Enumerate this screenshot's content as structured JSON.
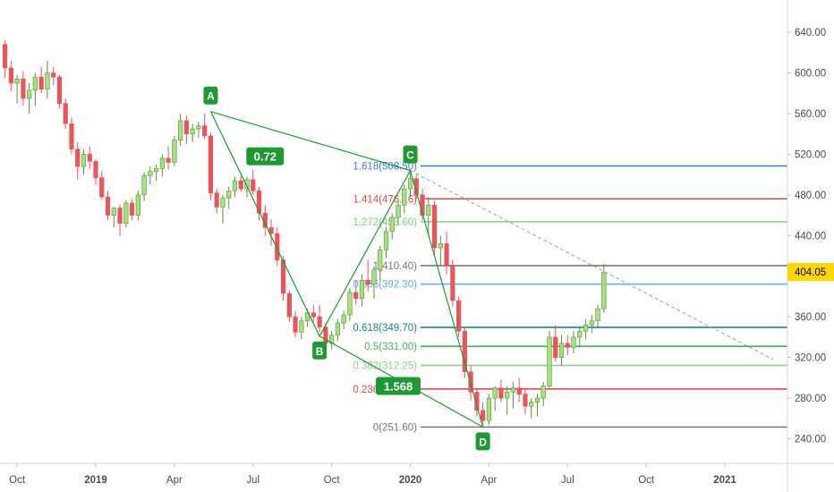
{
  "chart_data": {
    "type": "candlestick",
    "y_axis": {
      "range": [
        225,
        665
      ],
      "ticks": [
        "640.00",
        "600.00",
        "560.00",
        "520.00",
        "480.00",
        "440.00",
        "400.00",
        "360.00",
        "320.00",
        "280.00",
        "240.00"
      ],
      "tick_values": [
        640,
        600,
        560,
        520,
        480,
        440,
        400,
        360,
        320,
        280,
        240
      ],
      "last_price": "404.05",
      "last_price_value": 404.05
    },
    "x_axis": {
      "labels": [
        "Oct",
        "2019",
        "Apr",
        "Jul",
        "Oct",
        "2020",
        "Apr",
        "Jul",
        "Oct",
        "2021"
      ],
      "bold": [
        false,
        true,
        false,
        false,
        false,
        true,
        false,
        false,
        false,
        true
      ],
      "weeks": [
        -13,
        0,
        13,
        26,
        39,
        52,
        65,
        78,
        91,
        104
      ]
    },
    "candles": [
      [
        -15,
        628,
        632,
        595,
        605
      ],
      [
        -14,
        605,
        612,
        582,
        590
      ],
      [
        -13,
        590,
        598,
        570,
        594
      ],
      [
        -12,
        594,
        602,
        568,
        575
      ],
      [
        -11,
        575,
        590,
        560,
        583
      ],
      [
        -10,
        583,
        600,
        568,
        596
      ],
      [
        -9,
        596,
        606,
        580,
        584
      ],
      [
        -8,
        584,
        612,
        575,
        600
      ],
      [
        -7,
        600,
        606,
        588,
        596
      ],
      [
        -6,
        596,
        598,
        565,
        570
      ],
      [
        -5,
        570,
        575,
        545,
        550
      ],
      [
        -4,
        550,
        556,
        520,
        525
      ],
      [
        -3,
        525,
        532,
        495,
        508
      ],
      [
        -2,
        508,
        525,
        500,
        520
      ],
      [
        -1,
        520,
        528,
        505,
        513
      ],
      [
        0,
        513,
        515,
        490,
        497
      ],
      [
        1,
        497,
        504,
        475,
        478
      ],
      [
        2,
        478,
        484,
        455,
        460
      ],
      [
        3,
        460,
        468,
        448,
        467
      ],
      [
        4,
        467,
        470,
        440,
        452
      ],
      [
        5,
        452,
        475,
        448,
        472
      ],
      [
        6,
        472,
        476,
        455,
        460
      ],
      [
        7,
        460,
        484,
        455,
        480
      ],
      [
        8,
        480,
        502,
        474,
        499
      ],
      [
        9,
        499,
        508,
        490,
        503
      ],
      [
        10,
        503,
        510,
        494,
        506
      ],
      [
        11,
        506,
        520,
        498,
        516
      ],
      [
        12,
        516,
        528,
        505,
        512
      ],
      [
        13,
        512,
        538,
        508,
        534
      ],
      [
        14,
        534,
        560,
        528,
        553
      ],
      [
        15,
        553,
        558,
        530,
        540
      ],
      [
        16,
        540,
        550,
        532,
        545
      ],
      [
        17,
        545,
        552,
        536,
        548
      ],
      [
        18,
        548,
        560,
        535,
        538
      ],
      [
        19,
        538,
        542,
        475,
        482
      ],
      [
        20,
        482,
        486,
        462,
        468
      ],
      [
        21,
        468,
        480,
        452,
        477
      ],
      [
        22,
        477,
        488,
        466,
        484
      ],
      [
        23,
        484,
        498,
        478,
        494
      ],
      [
        24,
        494,
        499,
        483,
        486
      ],
      [
        25,
        486,
        498,
        478,
        495
      ],
      [
        26,
        495,
        505,
        480,
        484
      ],
      [
        27,
        484,
        488,
        455,
        462
      ],
      [
        28,
        462,
        470,
        440,
        448
      ],
      [
        29,
        448,
        456,
        430,
        442
      ],
      [
        30,
        442,
        448,
        410,
        416
      ],
      [
        31,
        416,
        420,
        376,
        383
      ],
      [
        32,
        383,
        386,
        355,
        360
      ],
      [
        33,
        360,
        366,
        340,
        345
      ],
      [
        34,
        345,
        360,
        338,
        356
      ],
      [
        35,
        356,
        368,
        350,
        364
      ],
      [
        36,
        364,
        372,
        355,
        360
      ],
      [
        37,
        360,
        372,
        345,
        350
      ],
      [
        38,
        350,
        354,
        330,
        334
      ],
      [
        39,
        334,
        346,
        328,
        342
      ],
      [
        40,
        342,
        358,
        336,
        354
      ],
      [
        41,
        354,
        366,
        348,
        362
      ],
      [
        42,
        362,
        388,
        356,
        384
      ],
      [
        43,
        384,
        396,
        372,
        378
      ],
      [
        44,
        378,
        402,
        370,
        396
      ],
      [
        45,
        396,
        416,
        385,
        392
      ],
      [
        46,
        392,
        410,
        378,
        406
      ],
      [
        47,
        406,
        430,
        396,
        426
      ],
      [
        48,
        426,
        448,
        418,
        444
      ],
      [
        49,
        444,
        462,
        436,
        458
      ],
      [
        50,
        458,
        474,
        450,
        470
      ],
      [
        51,
        470,
        490,
        462,
        486
      ],
      [
        52,
        486,
        502,
        478,
        496
      ],
      [
        53,
        496,
        500,
        476,
        480
      ],
      [
        54,
        480,
        486,
        455,
        460
      ],
      [
        55,
        460,
        478,
        440,
        470
      ],
      [
        56,
        470,
        474,
        420,
        428
      ],
      [
        57,
        428,
        440,
        410,
        432
      ],
      [
        58,
        432,
        444,
        402,
        410
      ],
      [
        59,
        410,
        416,
        370,
        376
      ],
      [
        60,
        376,
        380,
        340,
        346
      ],
      [
        61,
        346,
        350,
        300,
        306
      ],
      [
        62,
        306,
        312,
        278,
        286
      ],
      [
        63,
        286,
        290,
        262,
        268
      ],
      [
        64,
        268,
        276,
        252,
        258
      ],
      [
        65,
        258,
        284,
        254,
        280
      ],
      [
        66,
        280,
        292,
        268,
        290
      ],
      [
        67,
        290,
        298,
        276,
        280
      ],
      [
        68,
        280,
        292,
        264,
        286
      ],
      [
        69,
        286,
        296,
        270,
        290
      ],
      [
        70,
        290,
        300,
        276,
        284
      ],
      [
        71,
        284,
        290,
        264,
        272
      ],
      [
        72,
        272,
        280,
        260,
        276
      ],
      [
        73,
        276,
        284,
        262,
        280
      ],
      [
        74,
        280,
        296,
        272,
        292
      ],
      [
        75,
        292,
        346,
        290,
        340
      ],
      [
        76,
        340,
        352,
        316,
        320
      ],
      [
        77,
        320,
        342,
        312,
        334
      ],
      [
        78,
        334,
        342,
        322,
        330
      ],
      [
        79,
        330,
        346,
        324,
        340
      ],
      [
        80,
        340,
        350,
        330,
        346
      ],
      [
        81,
        346,
        358,
        338,
        352
      ],
      [
        82,
        352,
        362,
        344,
        356
      ],
      [
        83,
        356,
        372,
        350,
        368
      ],
      [
        84,
        368,
        412,
        364,
        404.05
      ]
    ],
    "pattern": {
      "type": "harmonic ABCD",
      "points": [
        {
          "label": "A",
          "week": 19,
          "price": 562
        },
        {
          "label": "B",
          "week": 37,
          "price": 341
        },
        {
          "label": "C",
          "week": 52,
          "price": 504
        },
        {
          "label": "D",
          "week": 64,
          "price": 251.6
        }
      ],
      "ratios": [
        {
          "text": "0.72",
          "week": 28,
          "price": 518
        },
        {
          "text": "1.568",
          "week": 50,
          "price": 292
        }
      ],
      "trendline": {
        "from": {
          "week": 52,
          "price": 504
        },
        "to": {
          "week": 112,
          "price": 318
        }
      }
    },
    "fib_levels": [
      {
        "ratio": "1.618",
        "value": "508.50",
        "price": 508.5,
        "color": "#2f80d6"
      },
      {
        "ratio": "1.414",
        "value": "476.16",
        "price": 476.16,
        "color": "#e04a4a"
      },
      {
        "ratio": "1.272",
        "value": "453.60",
        "price": 453.6,
        "color": "#7fce7f"
      },
      {
        "ratio": "1",
        "value": "410.40",
        "price": 410.4,
        "color": "#777777"
      },
      {
        "ratio": "0.886",
        "value": "392.30",
        "price": 392.3,
        "color": "#66b0e8"
      },
      {
        "ratio": "0.618",
        "value": "349.70",
        "price": 349.7,
        "color": "#138a7e"
      },
      {
        "ratio": "0.5",
        "value": "331.00",
        "price": 331.0,
        "color": "#4caf50"
      },
      {
        "ratio": "0.382",
        "value": "312.25",
        "price": 312.25,
        "color": "#8fd08f"
      },
      {
        "ratio": "0.236",
        "value": "289.05",
        "price": 289.05,
        "color": "#e04a4a"
      },
      {
        "ratio": "0",
        "value": "251.60",
        "price": 251.6,
        "color": "#777777"
      }
    ],
    "colors": {
      "up": "#a6e27a",
      "up_border": "#5a8f3a",
      "down": "#e8555a",
      "pattern": "#1e9a33",
      "price_tag": "#ffd600"
    }
  }
}
